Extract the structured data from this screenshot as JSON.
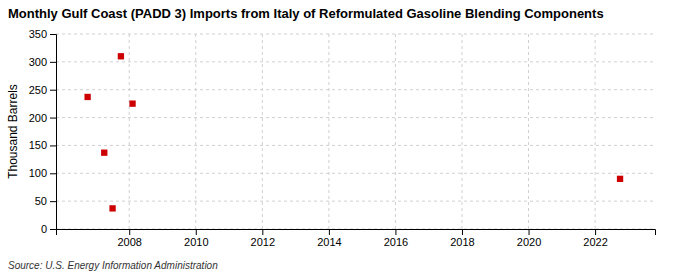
{
  "chart_data": {
    "type": "scatter",
    "title": "Monthly Gulf Coast (PADD 3) Imports from Italy of Reformulated Gasoline Blending Components",
    "y_label": "Thousand Barrels",
    "annotations": [
      "Source: U.S. Energy Information Administration"
    ],
    "x": [
      2006.75,
      2007.25,
      2007.5,
      2007.75,
      2008.1,
      2022.75
    ],
    "values": [
      237,
      137,
      37,
      310,
      225,
      90
    ],
    "color": "#cc0000",
    "marker": "square",
    "xlim": [
      2005.8,
      2023.8
    ],
    "ylim": [
      0,
      350
    ],
    "xticks": [
      2008,
      2010,
      2012,
      2014,
      2016,
      2018,
      2020,
      2022
    ],
    "yticks": [
      0,
      50,
      100,
      150,
      200,
      250,
      300,
      350
    ],
    "grid": true
  }
}
